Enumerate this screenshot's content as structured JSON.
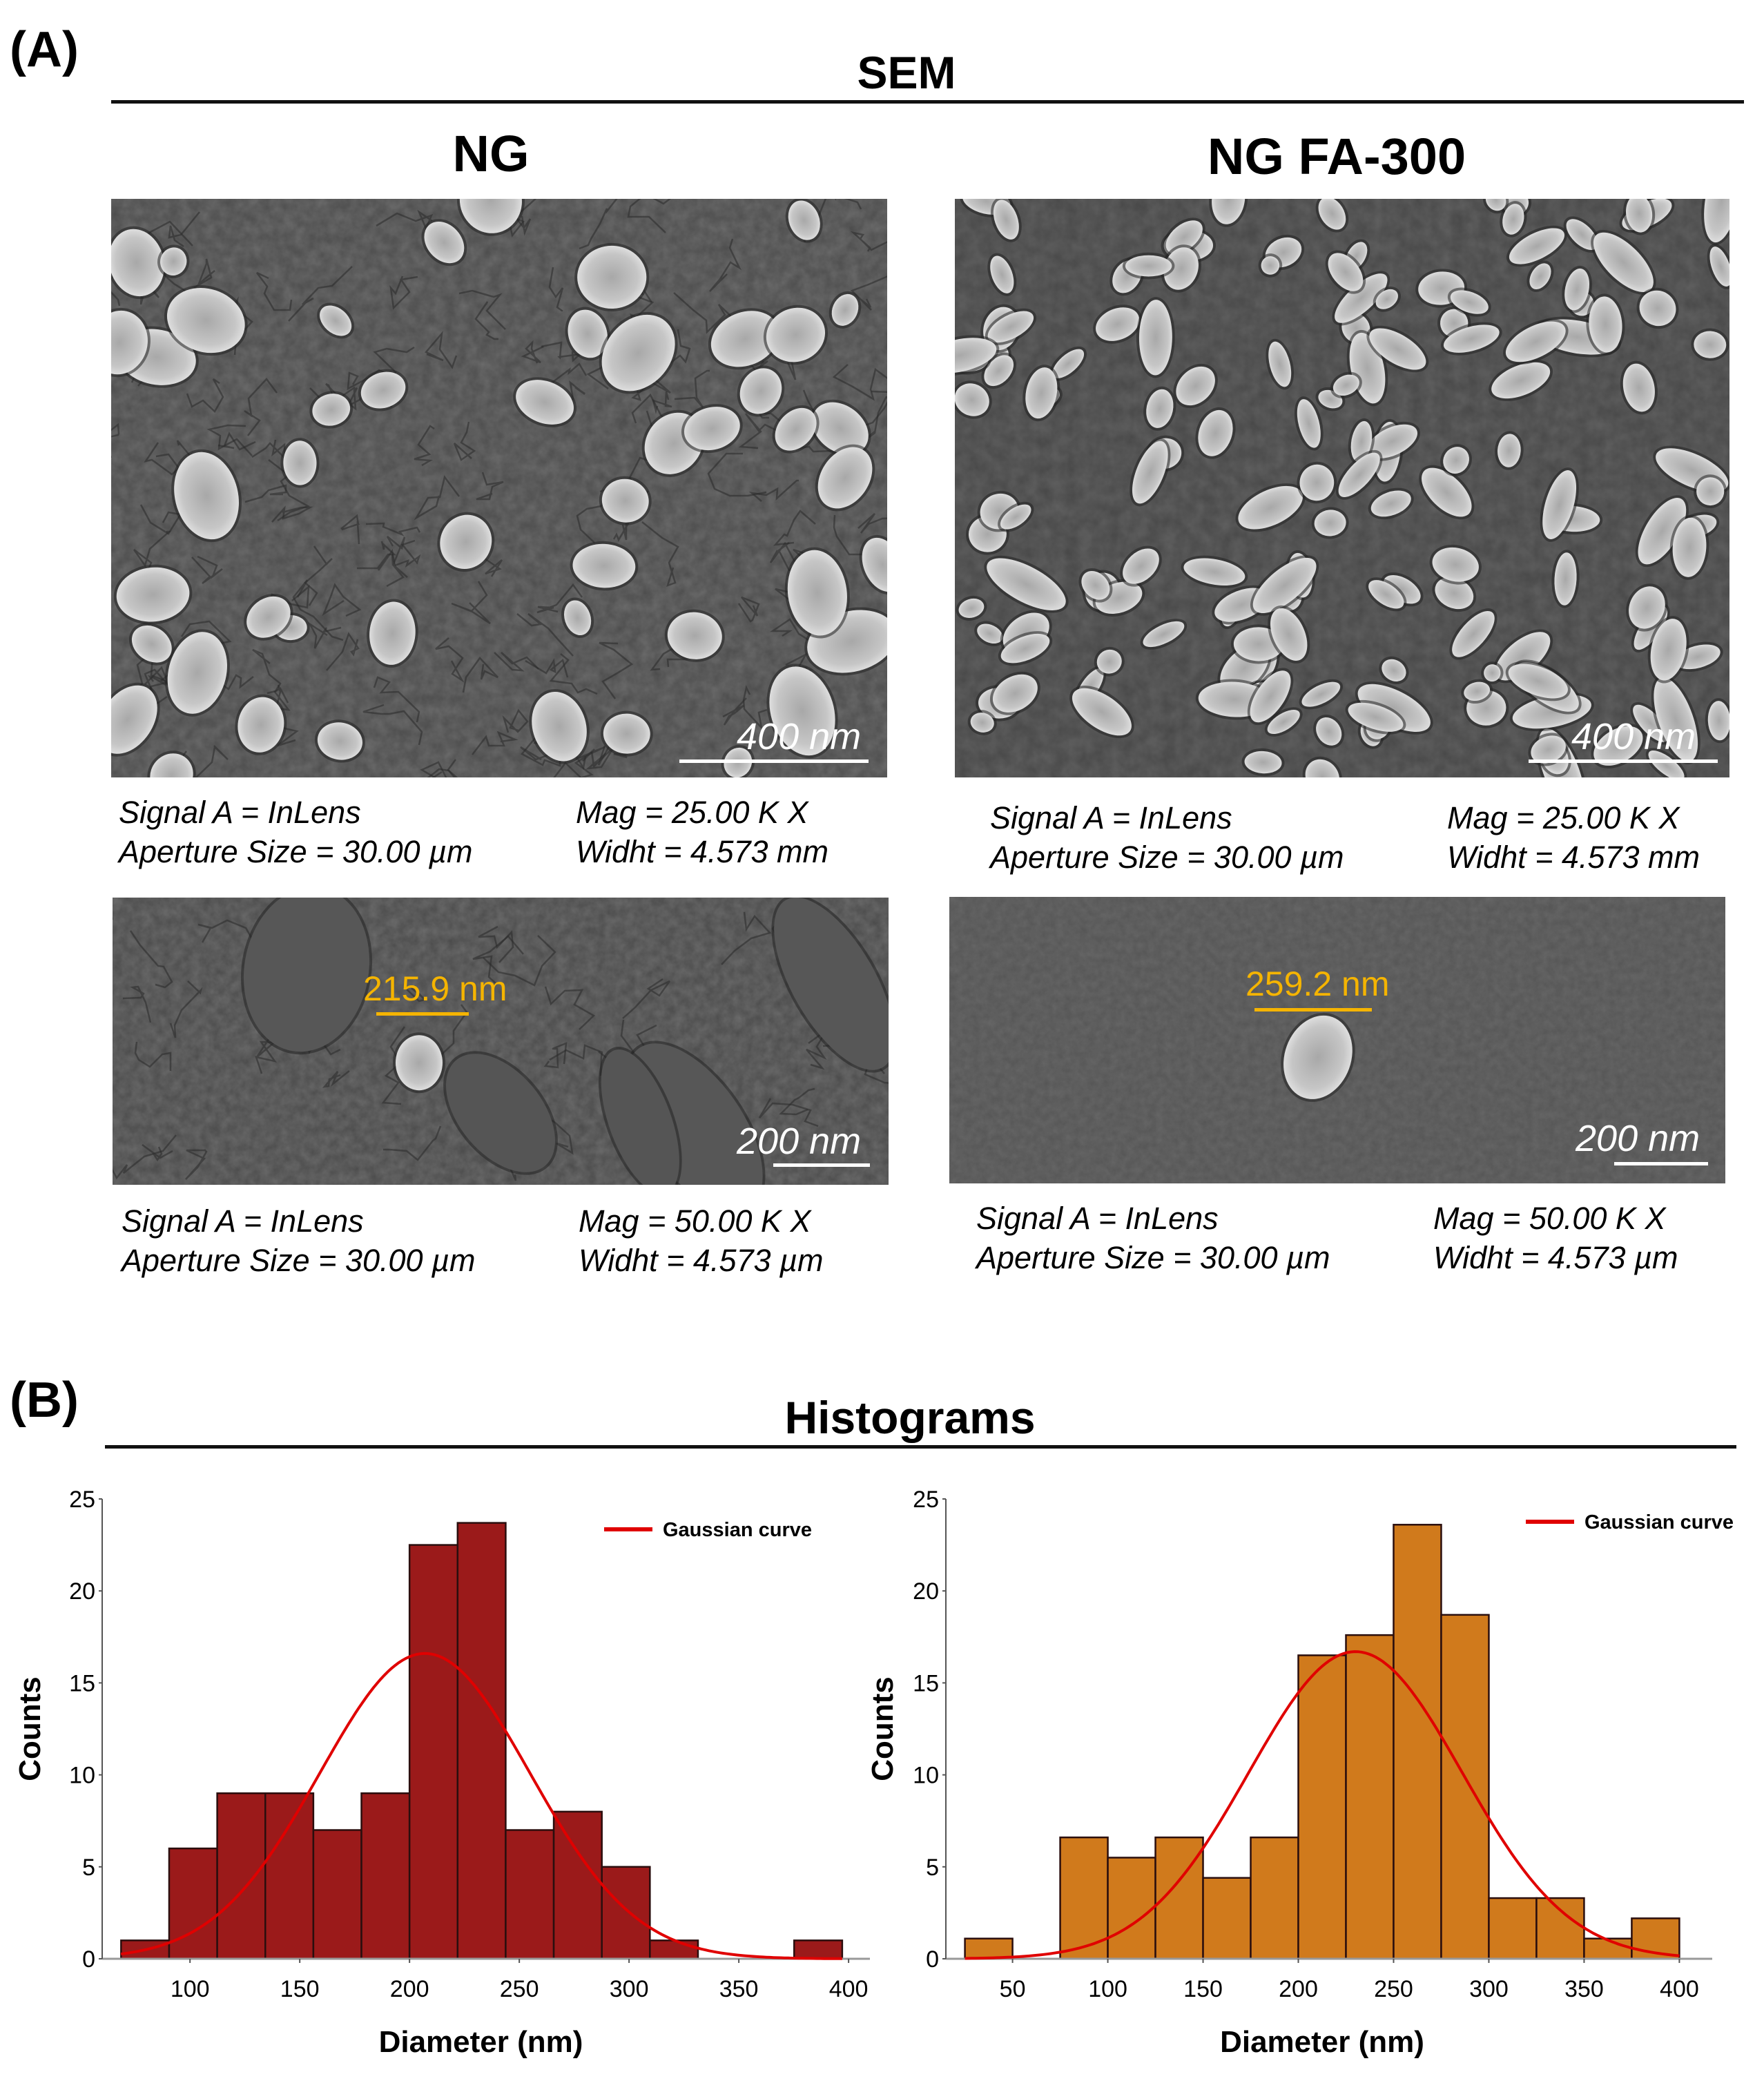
{
  "panel_a": {
    "label": "(A)",
    "title": "SEM",
    "columns": [
      {
        "title": "NG",
        "images": [
          {
            "scale_label": "400 nm",
            "caption": {
              "signal": "Signal A = InLens",
              "aperture": "Aperture Size = 30.00 µm",
              "mag": "Mag = 25.00 K X",
              "width": "Widht = 4.573 mm"
            }
          },
          {
            "scale_label": "200 nm",
            "measurement": "215.9 nm",
            "caption": {
              "signal": "Signal A = InLens",
              "aperture": "Aperture Size = 30.00 µm",
              "mag": "Mag = 50.00 K X",
              "width": "Widht = 4.573 µm"
            }
          }
        ]
      },
      {
        "title": "NG FA-300",
        "images": [
          {
            "scale_label": "400 nm",
            "caption": {
              "signal": "Signal A = InLens",
              "aperture": "Aperture Size = 30.00 µm",
              "mag": "Mag = 25.00 K X",
              "width": "Widht = 4.573 mm"
            }
          },
          {
            "scale_label": "200 nm",
            "measurement": "259.2 nm",
            "caption": {
              "signal": "Signal A = InLens",
              "aperture": "Aperture Size = 30.00 µm",
              "mag": "Mag = 50.00 K X",
              "width": "Widht = 4.573 µm"
            }
          }
        ]
      }
    ]
  },
  "panel_b": {
    "label": "(B)",
    "title": "Histograms"
  },
  "colors": {
    "ng_bar": "#9b1a1a",
    "fa_bar": "#d07a1c",
    "gaussian": "#e00000",
    "measurement": "#f5b400"
  },
  "chart_data": [
    {
      "type": "bar",
      "title": "NG",
      "xlabel": "Diameter (nm)",
      "ylabel": "Counts",
      "legend": [
        "Gaussian curve"
      ],
      "legend_position": "upper right",
      "grid": false,
      "xlim": [
        60,
        405
      ],
      "ylim": [
        0,
        25
      ],
      "xticks": [
        100,
        150,
        200,
        250,
        300,
        350,
        400
      ],
      "yticks": [
        0,
        5,
        10,
        15,
        20,
        25
      ],
      "bin_start": 68.6,
      "bin_width": 21.9,
      "values": [
        1,
        6,
        9,
        9,
        7,
        9,
        22.5,
        23.7,
        7,
        8,
        5,
        1,
        0,
        0,
        1
      ],
      "gaussian": {
        "mean": 207,
        "sigma": 48,
        "peak": 16.6
      }
    },
    {
      "type": "bar",
      "title": "NG FA-300",
      "xlabel": "Diameter (nm)",
      "ylabel": "Counts",
      "legend": [
        "Gaussian curve"
      ],
      "legend_position": "upper right",
      "grid": false,
      "xlim": [
        15,
        410
      ],
      "ylim": [
        0,
        25
      ],
      "xticks": [
        50,
        100,
        150,
        200,
        250,
        300,
        350,
        400
      ],
      "yticks": [
        0,
        5,
        10,
        15,
        20,
        25
      ],
      "bin_start": 25,
      "bin_width": 25,
      "values": [
        1.1,
        0,
        6.6,
        5.5,
        6.6,
        4.4,
        6.6,
        16.5,
        17.6,
        23.6,
        18.7,
        3.3,
        3.3,
        1.1,
        2.2
      ],
      "gaussian": {
        "mean": 230,
        "sigma": 56,
        "peak": 16.7
      }
    }
  ]
}
